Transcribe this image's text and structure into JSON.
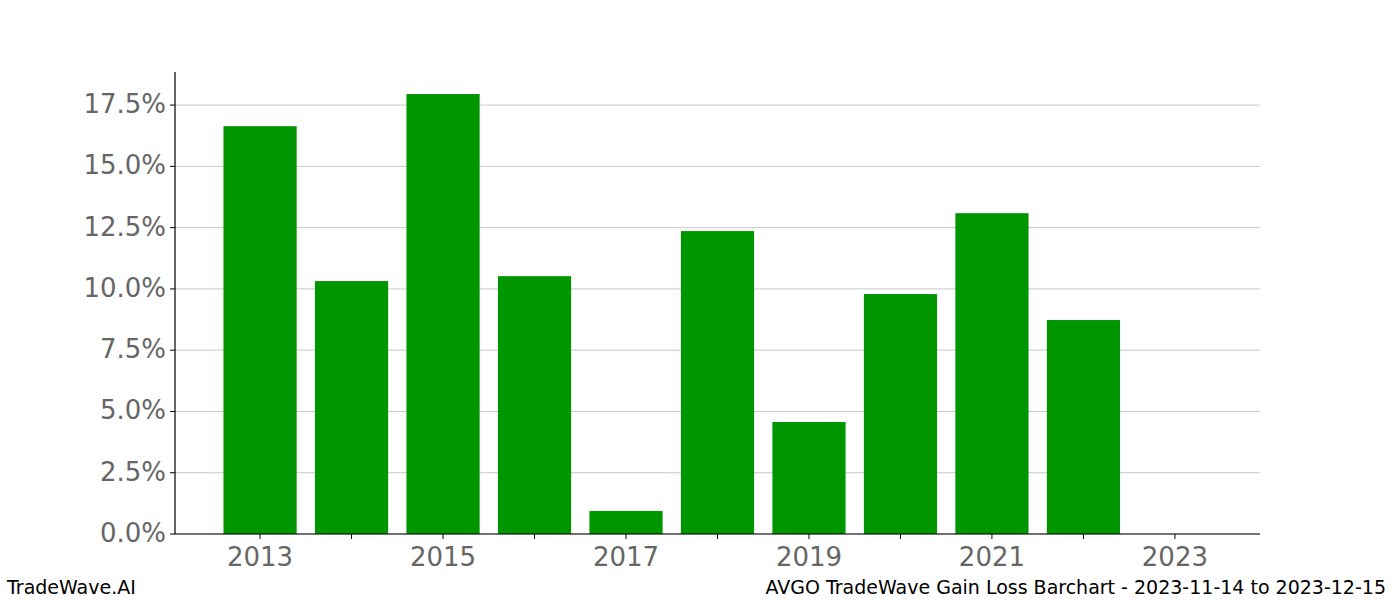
{
  "chart_data": {
    "type": "bar",
    "title": "AVGO TradeWave Gain Loss Barchart - 2023-11-14 to 2023-12-15",
    "annotations": [
      "TradeWave.AI"
    ],
    "categories": [
      "2013",
      null,
      "2015",
      null,
      "2017",
      null,
      "2019",
      null,
      "2021",
      null,
      "2023"
    ],
    "values": [
      16.64,
      10.32,
      17.95,
      10.52,
      0.94,
      12.36,
      4.57,
      9.79,
      13.09,
      8.73,
      0
    ],
    "color": "#009600",
    "ylim": [
      0,
      18.85
    ],
    "yticks": [
      {
        "value": 0,
        "label": "0.0%"
      },
      {
        "value": 2.5,
        "label": "2.5%"
      },
      {
        "value": 5,
        "label": "5.0%"
      },
      {
        "value": 7.5,
        "label": "7.5%"
      },
      {
        "value": 10,
        "label": "10.0%"
      },
      {
        "value": 12.5,
        "label": "12.5%"
      },
      {
        "value": 15,
        "label": "15.0%"
      },
      {
        "value": 17.5,
        "label": "17.5%"
      }
    ],
    "grid": true
  }
}
